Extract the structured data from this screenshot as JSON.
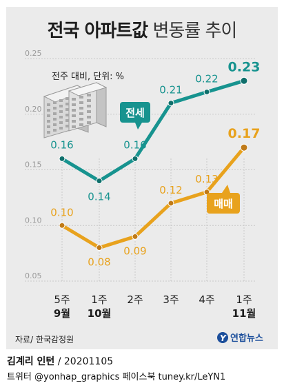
{
  "title_bold": "전국 아파트값",
  "title_light": "변동률 추이",
  "unit_note": "전주 대비, 단위: %",
  "source": "자료/ 한국감정원",
  "logo_text": "연합뉴스",
  "footer": {
    "author": "김계리 인턴",
    "date": " / 20201105",
    "contact": "트위터 @yonhap_graphics  페이스북 tuney.kr/LeYN1"
  },
  "colors": {
    "jeonse": "#17938f",
    "maemae": "#e8a21d",
    "background": "#ebebeb",
    "grid": "#c9c9c9"
  },
  "chart_data": {
    "type": "line",
    "categories": [
      [
        "5주",
        "9월"
      ],
      [
        "1주",
        "10월"
      ],
      [
        "2주",
        ""
      ],
      [
        "3주",
        ""
      ],
      [
        "4주",
        ""
      ],
      [
        "1주",
        "11월"
      ]
    ],
    "series": [
      {
        "name": "전세",
        "values": [
          0.16,
          0.14,
          0.16,
          0.21,
          0.22,
          0.23
        ],
        "labels": [
          "0.16",
          "0.14",
          "0.16",
          "0.21",
          "0.22",
          "0.23"
        ]
      },
      {
        "name": "매매",
        "values": [
          0.1,
          0.08,
          0.09,
          0.12,
          0.13,
          0.17
        ],
        "labels": [
          "0.10",
          "0.08",
          "0.09",
          "0.12",
          "0.13",
          "0.17"
        ]
      }
    ],
    "y_ticks": [
      "0.25",
      "0.20",
      "0.15",
      "0.10",
      "0.05"
    ],
    "ylim": [
      0.05,
      0.25
    ],
    "grid": true
  }
}
